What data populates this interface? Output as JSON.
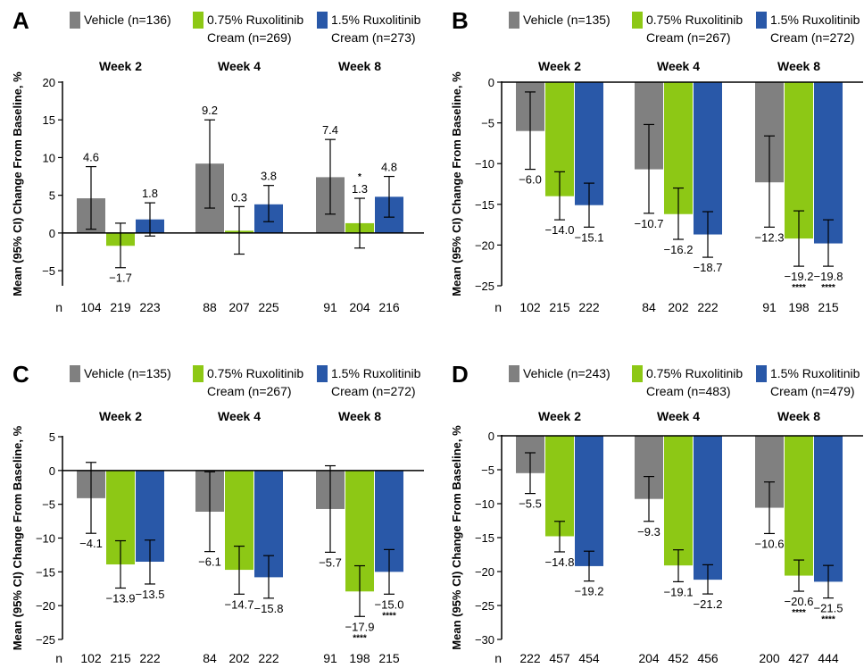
{
  "colors": {
    "vehicle": "#808080",
    "rux075": "#8dc815",
    "rux15": "#2958a8"
  },
  "ylabel": "Mean (95% CI) Change From Baseline, %",
  "week_labels": [
    "Week 2",
    "Week 4",
    "Week 8"
  ],
  "n_label": "n",
  "chart_data": [
    {
      "type": "bar",
      "panel": "A",
      "legend": [
        {
          "name": "Vehicle (n=136)",
          "lines": [
            "Vehicle (n=136)"
          ]
        },
        {
          "name": "0.75% Ruxolitinib Cream (n=269)",
          "lines": [
            "0.75% Ruxolitinib",
            "Cream (n=269)"
          ]
        },
        {
          "name": "1.5% Ruxolitinib Cream (n=273)",
          "lines": [
            "1.5% Ruxolitinib",
            "Cream (n=273)"
          ]
        }
      ],
      "categories": [
        "Week 2",
        "Week 4",
        "Week 8"
      ],
      "ylim": [
        -7,
        20
      ],
      "yticks": [
        -5,
        0,
        5,
        10,
        15,
        20
      ],
      "ytick_labels": [
        "−5",
        "0",
        "5",
        "10",
        "15",
        "20"
      ],
      "series": [
        {
          "name": "Vehicle (n=136)",
          "values": [
            4.6,
            9.2,
            7.4
          ],
          "ci_low": [
            0.5,
            3.3,
            2.5
          ],
          "ci_high": [
            8.8,
            15.0,
            12.4
          ],
          "labels": [
            "4.6",
            "9.2",
            "7.4"
          ],
          "stars": [
            "",
            "",
            ""
          ],
          "n": [
            "104",
            "88",
            "91"
          ]
        },
        {
          "name": "0.75% Ruxolitinib Cream (n=269)",
          "values": [
            -1.7,
            0.3,
            1.3
          ],
          "ci_low": [
            -4.6,
            -2.8,
            -2.0
          ],
          "ci_high": [
            1.3,
            3.5,
            4.6
          ],
          "labels": [
            "−1.7",
            "0.3",
            "1.3"
          ],
          "stars": [
            "",
            "",
            "*"
          ],
          "n": [
            "219",
            "207",
            "204"
          ]
        },
        {
          "name": "1.5% Ruxolitinib Cream (n=273)",
          "values": [
            1.8,
            3.8,
            4.8
          ],
          "ci_low": [
            -0.4,
            1.5,
            2.1
          ],
          "ci_high": [
            4.0,
            6.3,
            7.5
          ],
          "labels": [
            "1.8",
            "3.8",
            "4.8"
          ],
          "stars": [
            "",
            "",
            ""
          ],
          "n": [
            "223",
            "225",
            "216"
          ]
        }
      ]
    },
    {
      "type": "bar",
      "panel": "B",
      "legend": [
        {
          "name": "Vehicle (n=135)",
          "lines": [
            "Vehicle (n=135)"
          ]
        },
        {
          "name": "0.75% Ruxolitinib Cream (n=267)",
          "lines": [
            "0.75% Ruxolitinib",
            "Cream (n=267)"
          ]
        },
        {
          "name": "1.5% Ruxolitinib Cream (n=272)",
          "lines": [
            "1.5% Ruxolitinib",
            "Cream (n=272)"
          ]
        }
      ],
      "categories": [
        "Week 2",
        "Week 4",
        "Week 8"
      ],
      "ylim": [
        -25,
        0
      ],
      "yticks": [
        -25,
        -20,
        -15,
        -10,
        -5,
        0
      ],
      "ytick_labels": [
        "−25",
        "−20",
        "−15",
        "−10",
        "−5",
        "0"
      ],
      "series": [
        {
          "name": "Vehicle (n=135)",
          "values": [
            -6.0,
            -10.7,
            -12.3
          ],
          "ci_low": [
            -10.7,
            -16.1,
            -17.8
          ],
          "ci_high": [
            -1.2,
            -5.2,
            -6.6
          ],
          "labels": [
            "−6.0",
            "−10.7",
            "−12.3"
          ],
          "stars": [
            "",
            "",
            ""
          ],
          "n": [
            "102",
            "84",
            "91"
          ]
        },
        {
          "name": "0.75% Ruxolitinib Cream (n=267)",
          "values": [
            -14.0,
            -16.2,
            -19.2
          ],
          "ci_low": [
            -16.9,
            -19.3,
            -22.6
          ],
          "ci_high": [
            -11.0,
            -13.0,
            -15.8
          ],
          "labels": [
            "−14.0",
            "−16.2",
            "−19.2"
          ],
          "stars": [
            "",
            "",
            "****"
          ],
          "n": [
            "215",
            "202",
            "198"
          ]
        },
        {
          "name": "1.5% Ruxolitinib Cream (n=272)",
          "values": [
            -15.1,
            -18.7,
            -19.8
          ],
          "ci_low": [
            -17.8,
            -21.5,
            -22.6
          ],
          "ci_high": [
            -12.4,
            -15.9,
            -16.9
          ],
          "labels": [
            "−15.1",
            "−18.7",
            "−19.8"
          ],
          "stars": [
            "",
            "",
            "****"
          ],
          "n": [
            "222",
            "222",
            "215"
          ]
        }
      ]
    },
    {
      "type": "bar",
      "panel": "C",
      "legend": [
        {
          "name": "Vehicle (n=135)",
          "lines": [
            "Vehicle (n=135)"
          ]
        },
        {
          "name": "0.75% Ruxolitinib Cream (n=267)",
          "lines": [
            "0.75% Ruxolitinib",
            "Cream (n=267)"
          ]
        },
        {
          "name": "1.5% Ruxolitinib Cream (n=272)",
          "lines": [
            "1.5% Ruxolitinib",
            "Cream (n=272)"
          ]
        }
      ],
      "categories": [
        "Week 2",
        "Week 4",
        "Week 8"
      ],
      "ylim": [
        -25,
        5
      ],
      "yticks": [
        -25,
        -20,
        -15,
        -10,
        -5,
        0,
        5
      ],
      "ytick_labels": [
        "−25",
        "−20",
        "−15",
        "−10",
        "−5",
        "0",
        "5"
      ],
      "series": [
        {
          "name": "Vehicle (n=135)",
          "values": [
            -4.1,
            -6.1,
            -5.7
          ],
          "ci_low": [
            -9.3,
            -12.0,
            -12.1
          ],
          "ci_high": [
            1.2,
            -0.2,
            0.7
          ],
          "labels": [
            "−4.1",
            "−6.1",
            "−5.7"
          ],
          "stars": [
            "",
            "",
            ""
          ],
          "n": [
            "102",
            "84",
            "91"
          ]
        },
        {
          "name": "0.75% Ruxolitinib Cream (n=267)",
          "values": [
            -13.9,
            -14.7,
            -17.9
          ],
          "ci_low": [
            -17.4,
            -18.3,
            -21.6
          ],
          "ci_high": [
            -10.4,
            -11.2,
            -14.1
          ],
          "labels": [
            "−13.9",
            "−14.7",
            "−17.9"
          ],
          "stars": [
            "",
            "",
            "****"
          ],
          "n": [
            "215",
            "202",
            "198"
          ]
        },
        {
          "name": "1.5% Ruxolitinib Cream (n=272)",
          "values": [
            -13.5,
            -15.8,
            -15.0
          ],
          "ci_low": [
            -16.8,
            -18.9,
            -18.3
          ],
          "ci_high": [
            -10.3,
            -12.6,
            -11.7
          ],
          "labels": [
            "−13.5",
            "−15.8",
            "−15.0"
          ],
          "stars": [
            "",
            "",
            "****"
          ],
          "n": [
            "222",
            "222",
            "215"
          ]
        }
      ]
    },
    {
      "type": "bar",
      "panel": "D",
      "legend": [
        {
          "name": "Vehicle (n=243)",
          "lines": [
            "Vehicle (n=243)"
          ]
        },
        {
          "name": "0.75% Ruxolitinib Cream (n=483)",
          "lines": [
            "0.75% Ruxolitinib",
            "Cream (n=483)"
          ]
        },
        {
          "name": "1.5% Ruxolitinib Cream (n=479)",
          "lines": [
            "1.5% Ruxolitinib",
            "Cream (n=479)"
          ]
        }
      ],
      "categories": [
        "Week 2",
        "Week 4",
        "Week 8"
      ],
      "ylim": [
        -30,
        0
      ],
      "yticks": [
        -30,
        -25,
        -20,
        -15,
        -10,
        -5,
        0
      ],
      "ytick_labels": [
        "−30",
        "−25",
        "−20",
        "−15",
        "−10",
        "−5",
        "0"
      ],
      "series": [
        {
          "name": "Vehicle (n=243)",
          "values": [
            -5.5,
            -9.3,
            -10.6
          ],
          "ci_low": [
            -8.5,
            -12.6,
            -14.4
          ],
          "ci_high": [
            -2.5,
            -6.0,
            -6.8
          ],
          "labels": [
            "−5.5",
            "−9.3",
            "−10.6"
          ],
          "stars": [
            "",
            "",
            ""
          ],
          "n": [
            "222",
            "204",
            "200"
          ]
        },
        {
          "name": "0.75% Ruxolitinib Cream (n=483)",
          "values": [
            -14.8,
            -19.1,
            -20.6
          ],
          "ci_low": [
            -17.1,
            -21.5,
            -22.9
          ],
          "ci_high": [
            -12.6,
            -16.8,
            -18.3
          ],
          "labels": [
            "−14.8",
            "−19.1",
            "−20.6"
          ],
          "stars": [
            "",
            "",
            "****"
          ],
          "n": [
            "457",
            "452",
            "427"
          ]
        },
        {
          "name": "1.5% Ruxolitinib Cream (n=479)",
          "values": [
            -19.2,
            -21.2,
            -21.5
          ],
          "ci_low": [
            -21.4,
            -23.3,
            -23.9
          ],
          "ci_high": [
            -17.0,
            -19.0,
            -19.1
          ],
          "labels": [
            "−19.2",
            "−21.2",
            "−21.5"
          ],
          "stars": [
            "",
            "",
            "****"
          ],
          "n": [
            "454",
            "456",
            "444"
          ]
        }
      ]
    }
  ]
}
